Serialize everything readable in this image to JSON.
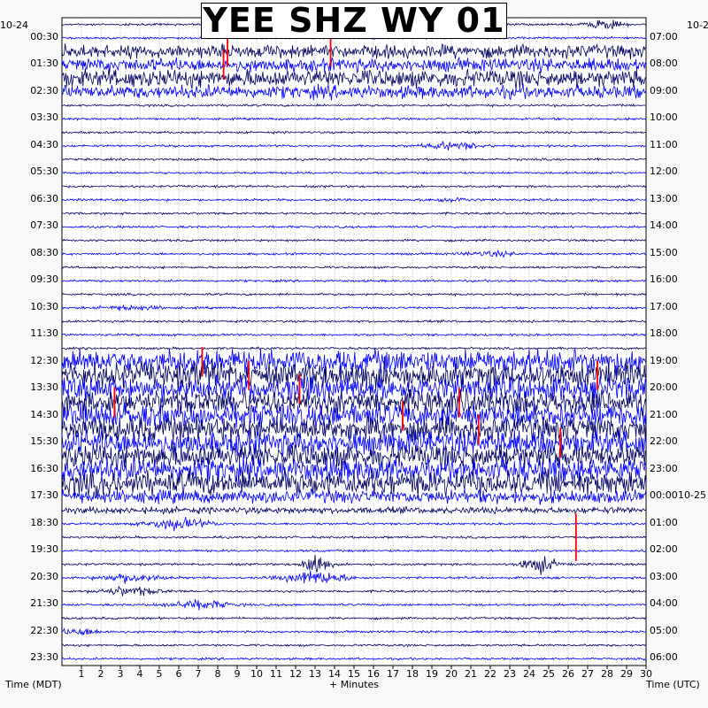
{
  "chart_data": {
    "type": "line",
    "title": "YEE SHZ WY 01",
    "xlabel": "+ Minutes",
    "left_axis_label": "Time (MDT)",
    "right_axis_label": "Time (UTC)",
    "left_date": "10-24",
    "right_date": "10-2",
    "right_date_inline": "10-25",
    "x_ticks": [
      1,
      2,
      3,
      4,
      5,
      6,
      7,
      8,
      9,
      10,
      11,
      12,
      13,
      14,
      15,
      16,
      17,
      18,
      19,
      20,
      21,
      22,
      23,
      24,
      25,
      26,
      27,
      28,
      29,
      30
    ],
    "xlim": [
      0,
      30
    ],
    "rows_per_hour": 2,
    "left_ticks": [
      "00:30",
      "01:30",
      "02:30",
      "03:30",
      "04:30",
      "05:30",
      "06:30",
      "07:30",
      "08:30",
      "09:30",
      "10:30",
      "11:30",
      "12:30",
      "13:30",
      "14:30",
      "15:30",
      "16:30",
      "17:30",
      "18:30",
      "19:30",
      "20:30",
      "21:30",
      "22:30",
      "23:30"
    ],
    "right_ticks": [
      "07:00",
      "08:00",
      "09:00",
      "10:00",
      "11:00",
      "12:00",
      "13:00",
      "14:00",
      "15:00",
      "16:00",
      "17:00",
      "18:00",
      "19:00",
      "20:00",
      "21:00",
      "22:00",
      "23:00",
      "00:00",
      "01:00",
      "02:00",
      "03:00",
      "04:00",
      "05:00",
      "06:00"
    ],
    "trace_colors": [
      "#000060",
      "#0000ff",
      "#ff0000"
    ],
    "grid": true
  }
}
